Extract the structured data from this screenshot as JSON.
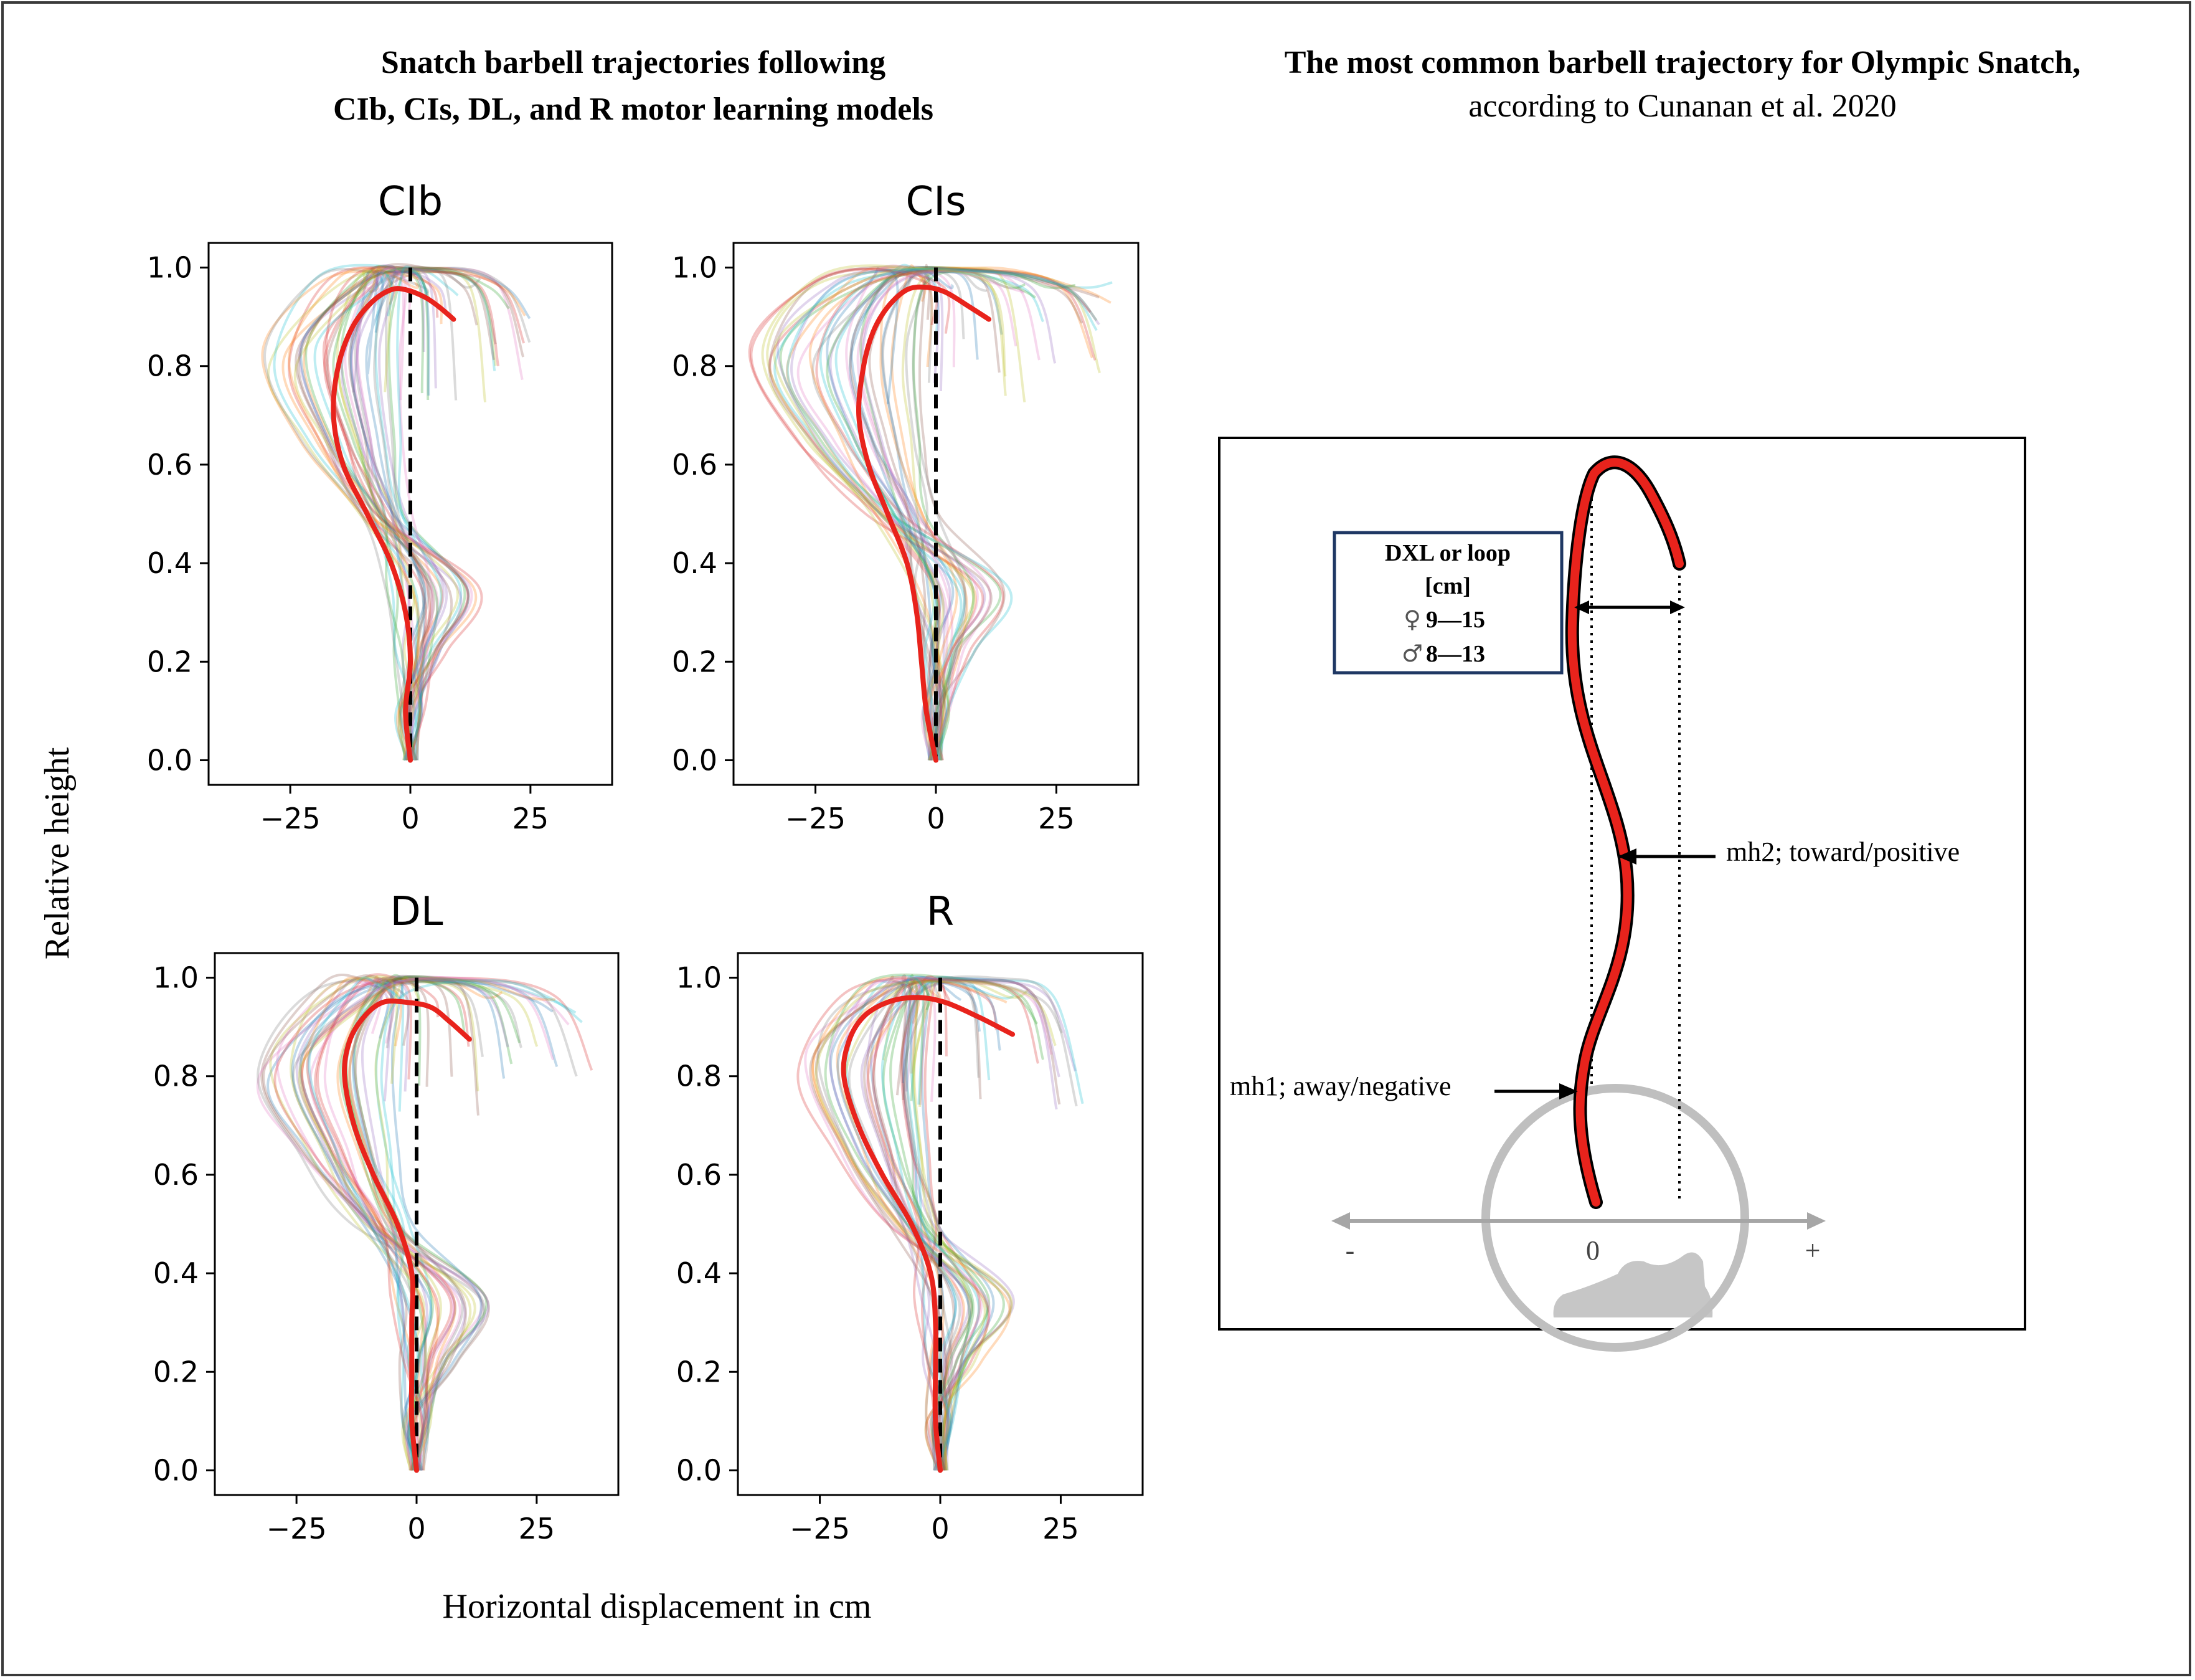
{
  "figure": {
    "left_title_line1": "Snatch barbell trajectories following",
    "left_title_line2": "CIb, CIs, DL, and R motor learning models",
    "right_title_line1": "The most common barbell trajectory for Olympic Snatch,",
    "right_title_line2": "according to Cunanan et al. 2020",
    "shared_ylabel": "Relative height",
    "shared_xlabel": "Horizontal  displacement  in cm"
  },
  "chart_data": [
    {
      "type": "line",
      "title": "CIb",
      "xlim": [
        -42,
        42
      ],
      "ylim": [
        -0.05,
        1.05
      ],
      "xticks": [
        -25,
        0,
        25
      ],
      "xtick_labels": [
        "−25",
        "0",
        "25"
      ],
      "yticks": [
        0.0,
        0.2,
        0.4,
        0.6,
        0.8,
        1.0
      ],
      "ytick_labels": [
        "0.0",
        "0.2",
        "0.4",
        "0.6",
        "0.8",
        "1.0"
      ],
      "reference_line": {
        "x": 0,
        "style": "dashed",
        "color": "#000000"
      },
      "mean_trajectory": {
        "color": "#e8231c",
        "x": [
          0,
          -1,
          0,
          -1,
          -4,
          -9,
          -14,
          -16,
          -15,
          -12,
          -8,
          -4,
          -1,
          3,
          6,
          9
        ],
        "y": [
          0.0,
          0.1,
          0.2,
          0.3,
          0.4,
          0.5,
          0.6,
          0.7,
          0.8,
          0.88,
          0.93,
          0.955,
          0.955,
          0.94,
          0.92,
          0.895
        ]
      },
      "individual_trajectories": {
        "count": 40,
        "x_end_range": [
          -12,
          25
        ],
        "x_min_range": [
          -32,
          -2
        ]
      }
    },
    {
      "type": "line",
      "title": "CIs",
      "xlim": [
        -42,
        42
      ],
      "ylim": [
        -0.05,
        1.05
      ],
      "xticks": [
        -25,
        0,
        25
      ],
      "xtick_labels": [
        "−25",
        "0",
        "25"
      ],
      "yticks": [
        0.0,
        0.2,
        0.4,
        0.6,
        0.8,
        1.0
      ],
      "ytick_labels": [
        "0.0",
        "0.2",
        "0.4",
        "0.6",
        "0.8",
        "1.0"
      ],
      "reference_line": {
        "x": 0,
        "style": "dashed",
        "color": "#000000"
      },
      "mean_trajectory": {
        "color": "#e8231c",
        "x": [
          0,
          -2,
          -3,
          -4,
          -6,
          -10,
          -14,
          -16,
          -15,
          -13,
          -10,
          -6,
          -2,
          2,
          7,
          11
        ],
        "y": [
          0.0,
          0.1,
          0.2,
          0.3,
          0.4,
          0.5,
          0.6,
          0.7,
          0.8,
          0.87,
          0.92,
          0.955,
          0.96,
          0.95,
          0.92,
          0.895
        ]
      },
      "individual_trajectories": {
        "count": 40,
        "x_end_range": [
          -10,
          38
        ],
        "x_min_range": [
          -40,
          -3
        ]
      }
    },
    {
      "type": "line",
      "title": "DL",
      "xlim": [
        -42,
        42
      ],
      "ylim": [
        -0.05,
        1.05
      ],
      "xticks": [
        -25,
        0,
        25
      ],
      "xtick_labels": [
        "−25",
        "0",
        "25"
      ],
      "yticks": [
        0.0,
        0.2,
        0.4,
        0.6,
        0.8,
        1.0
      ],
      "ytick_labels": [
        "0.0",
        "0.2",
        "0.4",
        "0.6",
        "0.8",
        "1.0"
      ],
      "reference_line": {
        "x": 0,
        "style": "dashed",
        "color": "#000000"
      },
      "mean_trajectory": {
        "color": "#e8231c",
        "x": [
          0,
          -1,
          -1,
          -1,
          -1,
          -4,
          -9,
          -13,
          -15,
          -14,
          -11,
          -7,
          -2,
          3,
          7,
          11
        ],
        "y": [
          0.0,
          0.1,
          0.2,
          0.3,
          0.4,
          0.5,
          0.6,
          0.7,
          0.8,
          0.87,
          0.92,
          0.95,
          0.95,
          0.94,
          0.91,
          0.875
        ]
      },
      "individual_trajectories": {
        "count": 40,
        "x_end_range": [
          -10,
          37
        ],
        "x_min_range": [
          -34,
          -3
        ]
      }
    },
    {
      "type": "line",
      "title": "R",
      "xlim": [
        -42,
        42
      ],
      "ylim": [
        -0.05,
        1.05
      ],
      "xticks": [
        -25,
        0,
        25
      ],
      "xtick_labels": [
        "−25",
        "0",
        "25"
      ],
      "yticks": [
        0.0,
        0.2,
        0.4,
        0.6,
        0.8,
        1.0
      ],
      "ytick_labels": [
        "0.0",
        "0.2",
        "0.4",
        "0.6",
        "0.8",
        "1.0"
      ],
      "reference_line": {
        "x": 0,
        "style": "dashed",
        "color": "#000000"
      },
      "mean_trajectory": {
        "color": "#e8231c",
        "x": [
          0,
          -1,
          -1,
          -1,
          -2,
          -6,
          -12,
          -17,
          -20,
          -19,
          -16,
          -11,
          -5,
          1,
          8,
          15
        ],
        "y": [
          0.0,
          0.1,
          0.2,
          0.3,
          0.4,
          0.5,
          0.6,
          0.7,
          0.8,
          0.87,
          0.92,
          0.95,
          0.96,
          0.95,
          0.92,
          0.885
        ]
      },
      "individual_trajectories": {
        "count": 40,
        "x_end_range": [
          -12,
          30
        ],
        "x_min_range": [
          -30,
          -3
        ]
      }
    }
  ],
  "diagram": {
    "box_title_line1": "DXL or loop",
    "box_title_line2": "[cm]",
    "female_symbol": "♀",
    "female_range": "9—15",
    "male_symbol": "♂",
    "male_range": "8—13",
    "mh2_label": "mh2; toward/positive",
    "mh1_label": "mh1; away/negative",
    "axis_minus": "-",
    "axis_zero": "0",
    "axis_plus": "+",
    "trajectory_color": "#e8231c",
    "box_border_color": "#1f3864",
    "gray_color": "#bfbfbf"
  }
}
